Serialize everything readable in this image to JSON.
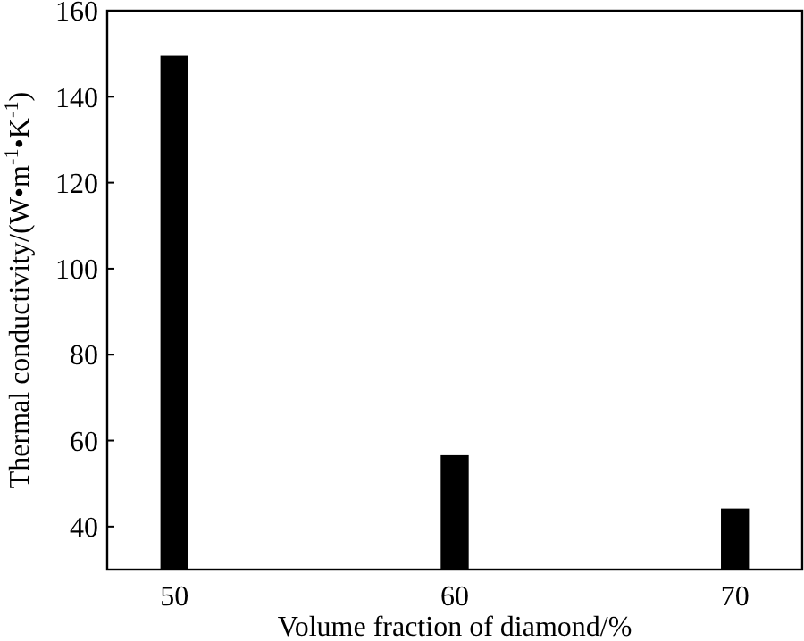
{
  "chart_data": {
    "type": "bar",
    "xlabel": "Volume fraction of diamond/%",
    "ylabel": "Thermal conductivity/(W•m$^{-1}$•K$^{-1}$)",
    "categories": [
      "50",
      "60",
      "70"
    ],
    "values": [
      149.5,
      56.6,
      44.2
    ],
    "color": "#000000",
    "ylim": [
      30,
      160
    ],
    "yticks": [
      40,
      60,
      80,
      100,
      120,
      140,
      160
    ],
    "grid": false
  }
}
